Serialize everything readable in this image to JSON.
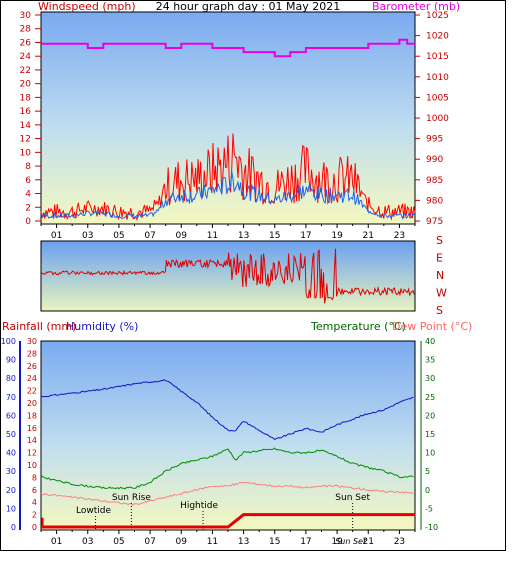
{
  "top_panel": {
    "title": "24 hour graph day : 01 May 2021",
    "left_axis_title": "Windspeed (mph)",
    "right_axis_title": "Barometer (mb)",
    "left_ticks": [
      "0",
      "2",
      "4",
      "6",
      "8",
      "10",
      "12",
      "14",
      "16",
      "18",
      "20",
      "22",
      "24",
      "26",
      "28",
      "30"
    ],
    "right_ticks": [
      "975",
      "980",
      "985",
      "990",
      "995",
      "1000",
      "1005",
      "1010",
      "1015",
      "1020",
      "1025"
    ],
    "x_ticks": [
      "01",
      "03",
      "05",
      "07",
      "09",
      "11",
      "13",
      "15",
      "17",
      "19",
      "21",
      "23"
    ]
  },
  "direction_panel": {
    "labels": [
      "S",
      "E",
      "N",
      "W",
      "S"
    ]
  },
  "bottom_panel": {
    "rain_axis_title": "Rainfall (mm)",
    "hum_axis_title": "Humidity (%)",
    "temp_axis_title": "Temperature (°C)",
    "dew_axis_title": "Dew Point (°C)",
    "rain_ticks": [
      "0",
      "2",
      "4",
      "6",
      "8",
      "10",
      "12",
      "14",
      "16",
      "18",
      "20",
      "22",
      "24",
      "26",
      "28",
      "30"
    ],
    "hum_ticks": [
      "0",
      "10",
      "20",
      "30",
      "40",
      "50",
      "60",
      "70",
      "80",
      "90",
      "100"
    ],
    "temp_ticks": [
      "-10",
      "-5",
      "0",
      "5",
      "10",
      "15",
      "20",
      "25",
      "30",
      "35",
      "40"
    ],
    "x_ticks": [
      "01",
      "03",
      "05",
      "07",
      "09",
      "11",
      "13",
      "15",
      "17",
      "19",
      "21",
      "23"
    ],
    "annotations": {
      "lowtide": "Lowtide",
      "sunrise": "Sun Rise",
      "hightide": "Hightide",
      "sunset": "Sun Set",
      "sunset_tick": "Sun Set"
    }
  },
  "colors": {
    "gust": "#ff0000",
    "avg_wind": "#1e64e6",
    "barometer": "#e600e6",
    "humidity": "#1414c8",
    "temperature": "#008c00",
    "dewpoint": "#ff8080",
    "rain": "#e60000",
    "axis_red": "#c80000",
    "axis_blue": "#1414c8",
    "axis_green": "#006400",
    "axis_pink": "#ff6464"
  },
  "chart_data": [
    {
      "type": "line",
      "title": "24 hour graph day : 01 May 2021",
      "x_unit": "hour",
      "xlim": [
        0,
        24
      ],
      "series": [
        {
          "name": "Windspeed (mph)",
          "axis": "left",
          "ylim": [
            0,
            30
          ],
          "x": [
            0,
            1,
            2,
            3,
            4,
            5,
            6,
            7,
            7.5,
            8,
            9,
            10,
            11,
            12,
            12.5,
            13,
            14,
            15,
            16,
            17,
            18,
            19,
            20,
            21,
            22,
            23,
            24
          ],
          "values": [
            1,
            1,
            1,
            1.5,
            1.5,
            1,
            1,
            1,
            2,
            4,
            5,
            5,
            6,
            7,
            8,
            6,
            5,
            4,
            5,
            6,
            5,
            5,
            5,
            2,
            1,
            1,
            1
          ]
        },
        {
          "name": "Barometer (mb)",
          "axis": "right",
          "ylim": [
            975,
            1025
          ],
          "x": [
            0,
            2,
            3,
            4,
            5,
            6,
            7,
            8,
            9,
            10,
            11,
            12,
            13,
            14,
            15,
            16,
            17,
            18,
            19,
            20,
            21,
            22,
            23,
            23.5,
            24
          ],
          "values": [
            1018,
            1018,
            1017,
            1018,
            1018,
            1018,
            1018,
            1017,
            1018,
            1018,
            1017,
            1017,
            1016,
            1016,
            1015,
            1016,
            1017,
            1017,
            1017,
            1017,
            1018,
            1018,
            1019,
            1018,
            1018
          ]
        }
      ]
    },
    {
      "type": "line",
      "x_unit": "hour",
      "xlim": [
        0,
        24
      ],
      "series": [
        {
          "name": "Humidity (%)",
          "axis": "humidity",
          "ylim": [
            0,
            100
          ],
          "x": [
            0,
            2,
            4,
            6,
            8,
            9,
            10,
            11,
            12,
            12.5,
            13,
            14,
            15,
            16,
            17,
            18,
            19,
            20,
            21,
            22,
            23,
            24
          ],
          "values": [
            70,
            72,
            74,
            77,
            79,
            73,
            67,
            59,
            52,
            52,
            57,
            52,
            47,
            50,
            53,
            51,
            55,
            58,
            61,
            63,
            67,
            70
          ]
        },
        {
          "name": "Temperature (°C)",
          "axis": "temperature",
          "ylim": [
            -10,
            40
          ],
          "x": [
            0,
            1,
            2,
            3,
            4,
            5,
            6,
            7,
            8,
            9,
            10,
            11,
            12,
            12.5,
            13,
            14,
            15,
            16,
            17,
            18,
            19,
            20,
            21,
            22,
            23,
            24
          ],
          "values": [
            3.5,
            2.5,
            1.5,
            1,
            0.5,
            0.5,
            0.5,
            2,
            5,
            7,
            8,
            9,
            11,
            8,
            10,
            10.5,
            11,
            10,
            10,
            10.5,
            9,
            7,
            6,
            5,
            3.5,
            3.5
          ]
        },
        {
          "name": "Dew Point (°C)",
          "axis": "temperature",
          "ylim": [
            -10,
            40
          ],
          "x": [
            0,
            2,
            4,
            5,
            6,
            7,
            8,
            9,
            10,
            11,
            12,
            13,
            14,
            15,
            16,
            17,
            18,
            19,
            20,
            21,
            22,
            23,
            24
          ],
          "values": [
            -1,
            -2,
            -3,
            -3.5,
            -4,
            -3,
            -2,
            -1,
            0,
            1,
            1,
            2,
            1.5,
            1,
            1,
            0.5,
            1,
            1,
            0.5,
            0,
            -0.5,
            -0.5,
            -1
          ]
        },
        {
          "name": "Rainfall (mm)",
          "axis": "rain",
          "ylim": [
            0,
            30
          ],
          "x": [
            0,
            12,
            12.5,
            13,
            14,
            24
          ],
          "values": [
            0,
            0,
            1,
            2,
            2,
            2
          ]
        }
      ]
    }
  ]
}
